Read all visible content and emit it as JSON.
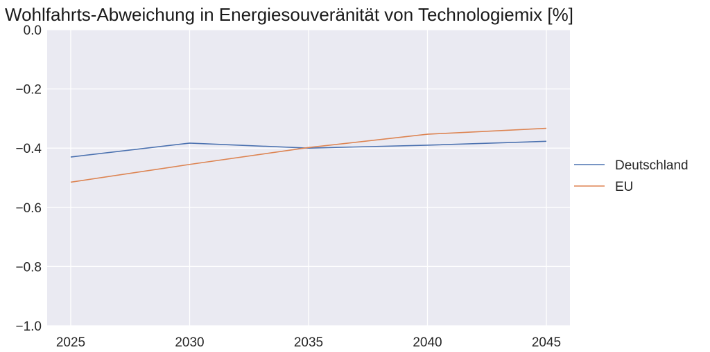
{
  "chart_data": {
    "type": "line",
    "title": "Wohlfahrts-Abweichung in Energiesouveränität von Technologiemix [%]",
    "xlabel": "",
    "ylabel": "",
    "x": [
      2025,
      2030,
      2035,
      2040,
      2045
    ],
    "x_tick_labels": [
      "2025",
      "2030",
      "2035",
      "2040",
      "2045"
    ],
    "ylim": [
      -1.0,
      0.0
    ],
    "y_ticks": [
      0.0,
      -0.2,
      -0.4,
      -0.6,
      -0.8,
      -1.0
    ],
    "y_tick_labels": [
      "0.0",
      "−0.2",
      "−0.4",
      "−0.6",
      "−0.8",
      "−1.0"
    ],
    "grid": true,
    "legend_position": "right",
    "series": [
      {
        "name": "Deutschland",
        "color": "#4c72b0",
        "values": [
          -0.43,
          -0.383,
          -0.4,
          -0.39,
          -0.377
        ]
      },
      {
        "name": "EU",
        "color": "#dd8452",
        "values": [
          -0.515,
          -0.455,
          -0.398,
          -0.353,
          -0.333
        ]
      }
    ],
    "background_color": "#eaeaf2",
    "grid_color": "#ffffff"
  }
}
